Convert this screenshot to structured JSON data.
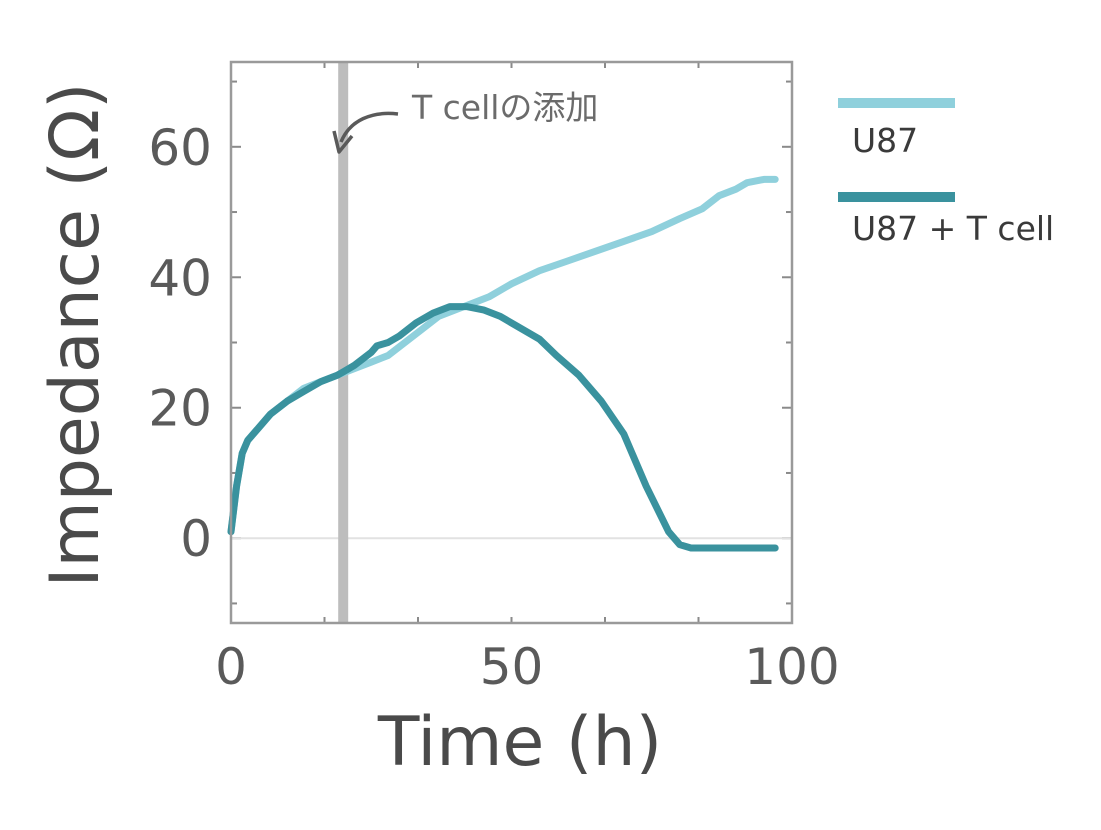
{
  "chart_data": {
    "type": "line",
    "xlabel": "Time (h)",
    "ylabel": "Impedance (Ω)",
    "xlim": [
      0,
      100
    ],
    "ylim": [
      -13,
      73
    ],
    "xticks": [
      0,
      50,
      100
    ],
    "xtick_labels": [
      "0",
      "50",
      "100"
    ],
    "yticks": [
      0,
      20,
      40,
      60
    ],
    "ytick_labels": [
      "0",
      "20",
      "40",
      "60"
    ],
    "grid": false,
    "legend_position": "right",
    "series": [
      {
        "name": "U87",
        "color": "#8fd0dc",
        "x": [
          0,
          1,
          2,
          3,
          5,
          7,
          10,
          13,
          16,
          19,
          22,
          25,
          28,
          31,
          34,
          37,
          40,
          43,
          46,
          50,
          55,
          60,
          65,
          70,
          75,
          80,
          84,
          87,
          90,
          92,
          95,
          97
        ],
        "y": [
          1,
          8,
          13,
          15,
          17,
          19,
          21,
          23,
          24,
          25,
          26,
          27,
          28,
          30,
          32,
          34,
          35,
          36,
          37,
          39,
          41,
          42.5,
          44,
          45.5,
          47,
          49,
          50.5,
          52.5,
          53.5,
          54.5,
          55,
          55
        ]
      },
      {
        "name": "U87 + T cell",
        "color": "#3a929e",
        "x": [
          0,
          1,
          2,
          3,
          5,
          7,
          10,
          13,
          16,
          19,
          20,
          22,
          25,
          26,
          28,
          30,
          33,
          36,
          39,
          42,
          45,
          48,
          51,
          55,
          58,
          62,
          66,
          70,
          74,
          78,
          80,
          82,
          84,
          86,
          87,
          88,
          90,
          93,
          95,
          97
        ],
        "y": [
          1,
          8,
          13,
          15,
          17,
          19,
          21,
          22.5,
          24,
          25,
          25.5,
          26.5,
          28.5,
          29.5,
          30,
          31,
          33,
          34.5,
          35.5,
          35.5,
          35,
          34,
          32.5,
          30.5,
          28,
          25,
          21,
          16,
          8,
          1,
          -1,
          -1.5,
          -1.5,
          -1.5,
          -1.5,
          -1.5,
          -1.5,
          -1.5,
          -1.5,
          -1.5
        ]
      }
    ],
    "annotations": [
      {
        "text": "T cellの添加",
        "x": 20
      }
    ]
  }
}
